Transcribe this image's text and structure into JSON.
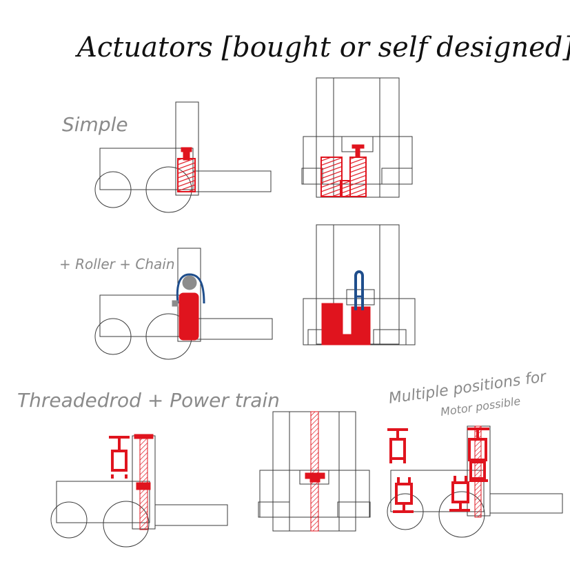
{
  "title": "Actuators [bought or self designed]",
  "sections": [
    {
      "id": "simple",
      "label": "Simple"
    },
    {
      "id": "roller-chain",
      "label": "+ Roller + Chain"
    },
    {
      "id": "threaded-rod",
      "label": "Threadedrod + Power train"
    },
    {
      "id": "multiple-positions",
      "label_line1": "Multiple positions for",
      "label_line2": "Motor possible"
    }
  ],
  "colors": {
    "outline": "#3a3a3a",
    "actuator_red": "#e0141e",
    "chain_blue": "#1f4e8c",
    "gray_roller": "#8c8c8c",
    "label_gray": "#8a8a8a",
    "title_black": "#111111"
  }
}
